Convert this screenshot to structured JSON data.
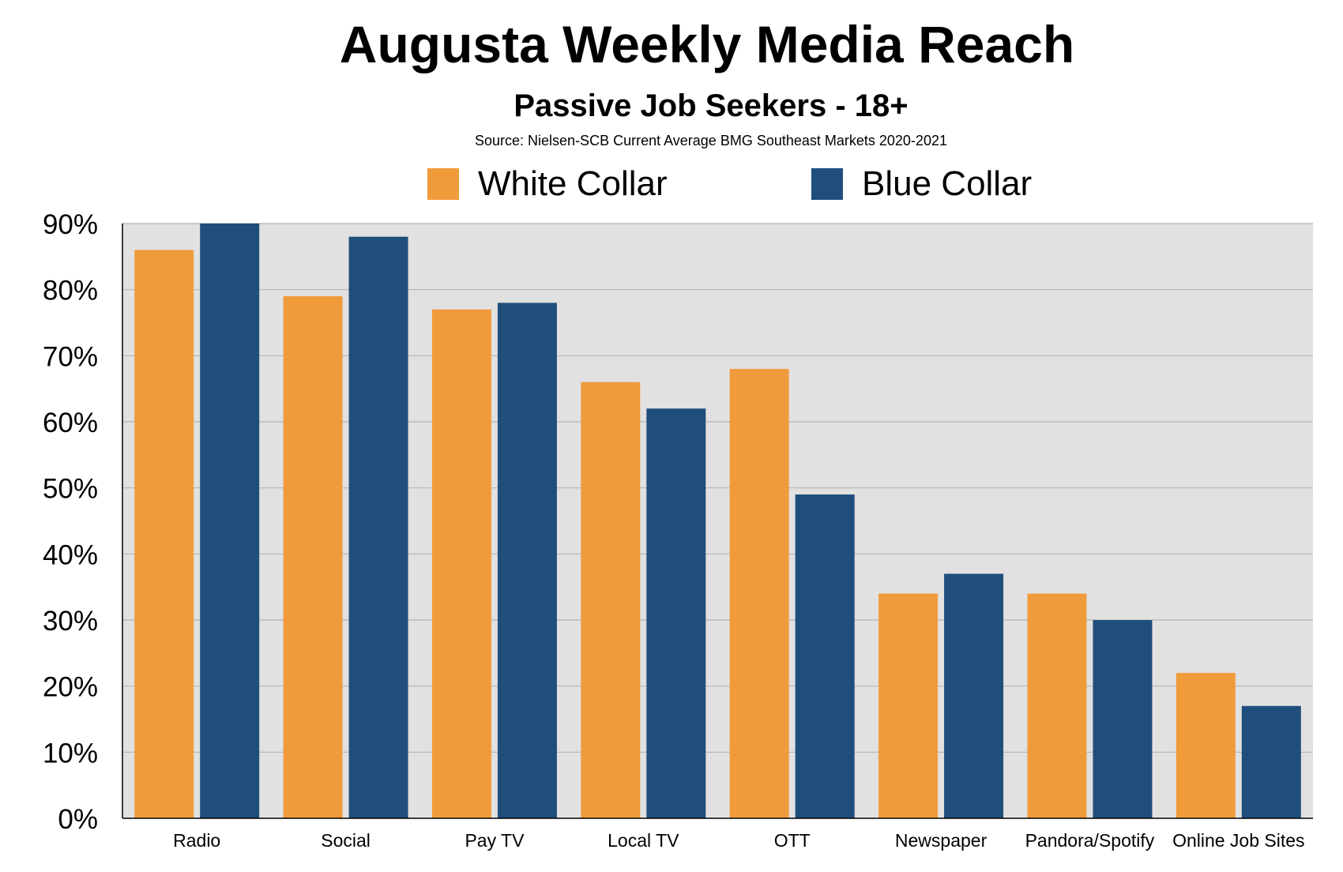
{
  "chart_data": {
    "type": "bar",
    "title": "Augusta Weekly Media Reach",
    "subtitle": "Passive Job Seekers - 18+",
    "source": "Source: Nielsen-SCB  Current Average BMG Southeast Markets 2020-2021",
    "categories": [
      "Radio",
      "Social",
      "Pay TV",
      "Local TV",
      "OTT",
      "Newspaper",
      "Pandora/Spotify",
      "Online Job Sites"
    ],
    "series": [
      {
        "name": "White Collar",
        "color": "#f09b3b",
        "values": [
          86,
          79,
          77,
          66,
          68,
          34,
          34,
          22
        ]
      },
      {
        "name": "Blue Collar",
        "color": "#204e7c",
        "values": [
          90,
          88,
          78,
          62,
          49,
          37,
          30,
          17
        ]
      }
    ],
    "ylim": [
      0,
      90
    ],
    "yticks": [
      0,
      10,
      20,
      30,
      40,
      50,
      60,
      70,
      80,
      90
    ],
    "ytick_labels": [
      "0%",
      "10%",
      "20%",
      "30%",
      "40%",
      "50%",
      "60%",
      "70%",
      "80%",
      "90%"
    ],
    "grid": true,
    "legend_position": "top",
    "plot_background": "#e1e1e1",
    "grid_color": "#b4b4b4"
  }
}
